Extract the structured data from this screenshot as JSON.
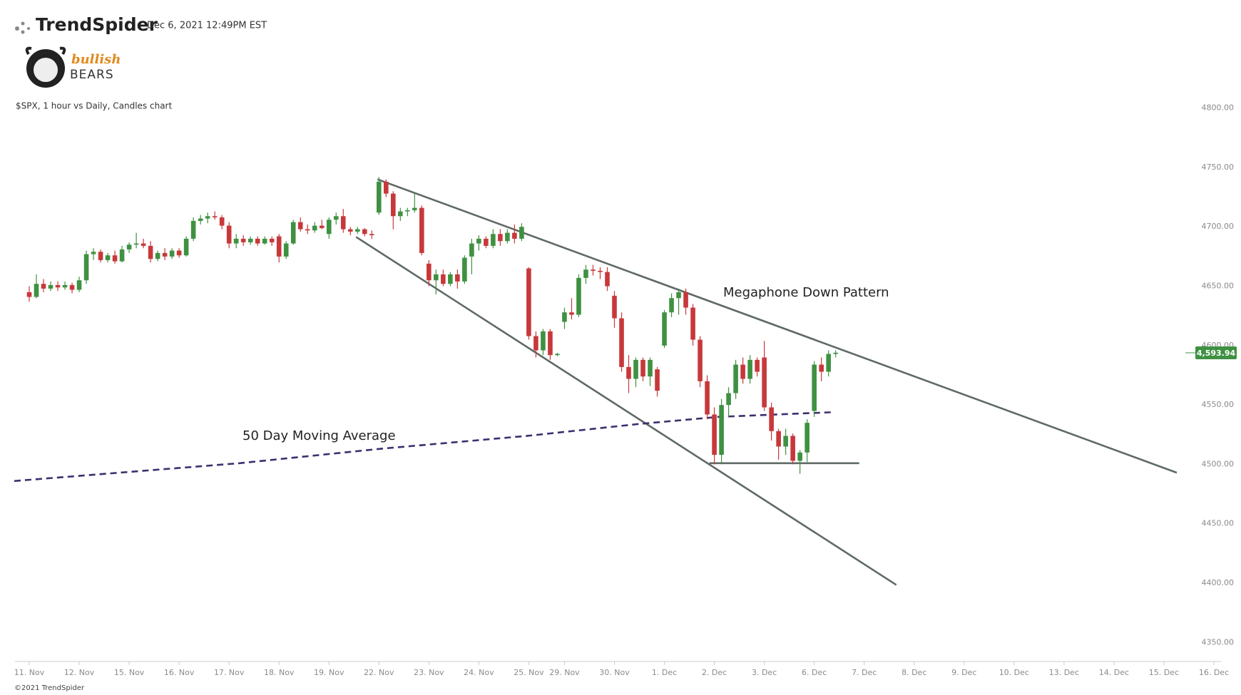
{
  "header": {
    "brand": "TrendSpider",
    "timestamp": "Dec 6, 2021 12:49PM EST",
    "logo_top": "bullish",
    "logo_bottom": "BEARS",
    "footer": "©2021 TrendSpider"
  },
  "chart_data": {
    "type": "candlestick",
    "subtitle": "$SPX, 1 hour vs Daily, Candles chart",
    "up_color": "#3f9142",
    "down_color": "#c7383b",
    "xlim": [
      -2,
      167
    ],
    "ylim": [
      4334,
      4831
    ],
    "yticks": [
      {
        "value": 4350,
        "label": "4350.00"
      },
      {
        "value": 4400,
        "label": "4400.00"
      },
      {
        "value": 4450,
        "label": "4450.00"
      },
      {
        "value": 4500,
        "label": "4500.00"
      },
      {
        "value": 4550,
        "label": "4550.00"
      },
      {
        "value": 4600,
        "label": "4600.00"
      },
      {
        "value": 4650,
        "label": "4650.00"
      },
      {
        "value": 4700,
        "label": "4700.00"
      },
      {
        "value": 4750,
        "label": "4750.00"
      },
      {
        "value": 4800,
        "label": "4800.00"
      }
    ],
    "xticks": [
      {
        "value": 0,
        "label": "11. Nov"
      },
      {
        "value": 7,
        "label": "12. Nov"
      },
      {
        "value": 14,
        "label": "15. Nov"
      },
      {
        "value": 21,
        "label": "16. Nov"
      },
      {
        "value": 28,
        "label": "17. Nov"
      },
      {
        "value": 35,
        "label": "18. Nov"
      },
      {
        "value": 42,
        "label": "19. Nov"
      },
      {
        "value": 49,
        "label": "22. Nov"
      },
      {
        "value": 56,
        "label": "23. Nov"
      },
      {
        "value": 63,
        "label": "24. Nov"
      },
      {
        "value": 70,
        "label": "25. Nov"
      },
      {
        "value": 75,
        "label": "29. Nov"
      },
      {
        "value": 82,
        "label": "30. Nov"
      },
      {
        "value": 89,
        "label": "1. Dec"
      },
      {
        "value": 96,
        "label": "2. Dec"
      },
      {
        "value": 103,
        "label": "3. Dec"
      },
      {
        "value": 110,
        "label": "6. Dec"
      },
      {
        "value": 117,
        "label": "7. Dec"
      },
      {
        "value": 124,
        "label": "8. Dec"
      },
      {
        "value": 131,
        "label": "9. Dec"
      },
      {
        "value": 138,
        "label": "10. Dec"
      },
      {
        "value": 145,
        "label": "13. Dec"
      },
      {
        "value": 152,
        "label": "14. Dec"
      },
      {
        "value": 159,
        "label": "15. Dec"
      },
      {
        "value": 166,
        "label": "16. Dec"
      }
    ],
    "candles": [
      [
        0,
        4645,
        4650,
        4637,
        4641
      ],
      [
        1,
        4641,
        4660,
        4640,
        4652
      ],
      [
        2,
        4652,
        4656,
        4645,
        4648
      ],
      [
        3,
        4648,
        4654,
        4646,
        4651
      ],
      [
        4,
        4651,
        4654,
        4646,
        4649
      ],
      [
        5,
        4649,
        4654,
        4647,
        4651
      ],
      [
        6,
        4651,
        4653,
        4644,
        4647
      ],
      [
        7,
        4647,
        4658,
        4645,
        4655
      ],
      [
        8,
        4655,
        4680,
        4652,
        4677
      ],
      [
        9,
        4677,
        4682,
        4672,
        4679
      ],
      [
        10,
        4679,
        4681,
        4670,
        4672
      ],
      [
        11,
        4672,
        4678,
        4670,
        4676
      ],
      [
        12,
        4676,
        4680,
        4669,
        4671
      ],
      [
        13,
        4671,
        4684,
        4670,
        4681
      ],
      [
        14,
        4681,
        4687,
        4678,
        4685
      ],
      [
        15,
        4685,
        4695,
        4682,
        4686
      ],
      [
        16,
        4686,
        4690,
        4682,
        4684
      ],
      [
        17,
        4684,
        4688,
        4670,
        4673
      ],
      [
        18,
        4673,
        4680,
        4671,
        4678
      ],
      [
        19,
        4678,
        4682,
        4672,
        4675
      ],
      [
        20,
        4675,
        4682,
        4673,
        4680
      ],
      [
        21,
        4680,
        4682,
        4674,
        4676
      ],
      [
        22,
        4676,
        4692,
        4675,
        4690
      ],
      [
        23,
        4690,
        4708,
        4688,
        4705
      ],
      [
        24,
        4705,
        4710,
        4702,
        4707
      ],
      [
        25,
        4707,
        4712,
        4703,
        4709
      ],
      [
        26,
        4709,
        4713,
        4706,
        4708
      ],
      [
        27,
        4708,
        4710,
        4698,
        4701
      ],
      [
        28,
        4701,
        4704,
        4682,
        4686
      ],
      [
        29,
        4686,
        4694,
        4682,
        4690
      ],
      [
        30,
        4690,
        4693,
        4684,
        4687
      ],
      [
        31,
        4687,
        4692,
        4685,
        4690
      ],
      [
        32,
        4690,
        4692,
        4684,
        4686
      ],
      [
        33,
        4686,
        4692,
        4685,
        4690
      ],
      [
        34,
        4690,
        4692,
        4684,
        4687
      ],
      [
        35,
        4692,
        4694,
        4670,
        4675
      ],
      [
        36,
        4675,
        4688,
        4673,
        4686
      ],
      [
        37,
        4686,
        4706,
        4685,
        4704
      ],
      [
        38,
        4704,
        4708,
        4696,
        4698
      ],
      [
        39,
        4698,
        4702,
        4694,
        4697
      ],
      [
        40,
        4697,
        4704,
        4695,
        4701
      ],
      [
        41,
        4701,
        4706,
        4698,
        4699
      ],
      [
        42,
        4694,
        4708,
        4690,
        4706
      ],
      [
        43,
        4706,
        4712,
        4702,
        4709
      ],
      [
        44,
        4709,
        4715,
        4695,
        4698
      ],
      [
        45,
        4698,
        4700,
        4693,
        4696
      ],
      [
        46,
        4696,
        4700,
        4694,
        4698
      ],
      [
        47,
        4698,
        4699,
        4692,
        4694
      ],
      [
        48,
        4694,
        4697,
        4690,
        4693
      ],
      [
        49,
        4712,
        4742,
        4710,
        4738
      ],
      [
        50,
        4738,
        4740,
        4725,
        4728
      ],
      [
        51,
        4728,
        4730,
        4698,
        4709
      ],
      [
        52,
        4709,
        4716,
        4705,
        4713
      ],
      [
        53,
        4713,
        4716,
        4709,
        4714
      ],
      [
        54,
        4714,
        4728,
        4712,
        4716
      ],
      [
        55,
        4716,
        4718,
        4676,
        4678
      ],
      [
        56,
        4669,
        4672,
        4650,
        4655
      ],
      [
        57,
        4655,
        4664,
        4643,
        4660
      ],
      [
        58,
        4660,
        4664,
        4650,
        4652
      ],
      [
        59,
        4652,
        4662,
        4650,
        4660
      ],
      [
        60,
        4660,
        4664,
        4648,
        4654
      ],
      [
        61,
        4654,
        4676,
        4652,
        4674
      ],
      [
        62,
        4675,
        4690,
        4660,
        4686
      ],
      [
        63,
        4686,
        4693,
        4680,
        4690
      ],
      [
        64,
        4690,
        4692,
        4682,
        4684
      ],
      [
        65,
        4684,
        4698,
        4682,
        4694
      ],
      [
        66,
        4694,
        4698,
        4684,
        4688
      ],
      [
        67,
        4688,
        4698,
        4686,
        4695
      ],
      [
        68,
        4695,
        4702,
        4686,
        4690
      ],
      [
        69,
        4690,
        4703,
        4688,
        4700
      ],
      [
        70,
        4665,
        4666,
        4605,
        4608
      ],
      [
        71,
        4608,
        4612,
        4590,
        4596
      ],
      [
        72,
        4596,
        4614,
        4592,
        4612
      ],
      [
        73,
        4612,
        4614,
        4588,
        4592
      ],
      [
        74,
        4592,
        4594,
        4591,
        4593
      ],
      [
        75,
        4620,
        4632,
        4614,
        4628
      ],
      [
        76,
        4628,
        4640,
        4622,
        4626
      ],
      [
        77,
        4626,
        4660,
        4624,
        4657
      ],
      [
        78,
        4657,
        4668,
        4652,
        4664
      ],
      [
        79,
        4664,
        4668,
        4659,
        4663
      ],
      [
        80,
        4663,
        4666,
        4656,
        4662
      ],
      [
        81,
        4662,
        4666,
        4646,
        4650
      ],
      [
        82,
        4642,
        4646,
        4615,
        4623
      ],
      [
        83,
        4623,
        4628,
        4578,
        4582
      ],
      [
        84,
        4582,
        4592,
        4560,
        4572
      ],
      [
        85,
        4572,
        4590,
        4565,
        4588
      ],
      [
        86,
        4588,
        4590,
        4570,
        4574
      ],
      [
        87,
        4574,
        4590,
        4566,
        4588
      ],
      [
        88,
        4580,
        4582,
        4557,
        4562
      ],
      [
        89,
        4600,
        4630,
        4598,
        4628
      ],
      [
        90,
        4628,
        4644,
        4624,
        4640
      ],
      [
        91,
        4640,
        4648,
        4626,
        4645
      ],
      [
        92,
        4645,
        4648,
        4626,
        4632
      ],
      [
        93,
        4632,
        4635,
        4600,
        4605
      ],
      [
        94,
        4605,
        4608,
        4565,
        4570
      ],
      [
        95,
        4570,
        4575,
        4538,
        4542
      ],
      [
        96,
        4542,
        4548,
        4500,
        4508
      ],
      [
        97,
        4508,
        4555,
        4500,
        4550
      ],
      [
        98,
        4550,
        4565,
        4540,
        4560
      ],
      [
        99,
        4560,
        4588,
        4555,
        4584
      ],
      [
        100,
        4584,
        4590,
        4568,
        4572
      ],
      [
        101,
        4572,
        4592,
        4568,
        4588
      ],
      [
        102,
        4588,
        4590,
        4574,
        4578
      ],
      [
        103,
        4590,
        4604,
        4545,
        4548
      ],
      [
        104,
        4548,
        4552,
        4520,
        4528
      ],
      [
        105,
        4528,
        4530,
        4504,
        4515
      ],
      [
        106,
        4515,
        4530,
        4508,
        4524
      ],
      [
        107,
        4524,
        4526,
        4500,
        4503
      ],
      [
        108,
        4503,
        4512,
        4492,
        4510
      ],
      [
        109,
        4510,
        4538,
        4502,
        4535
      ],
      [
        110,
        4545,
        4587,
        4540,
        4584
      ],
      [
        111,
        4584,
        4590,
        4570,
        4578
      ],
      [
        112,
        4578,
        4596,
        4574,
        4593
      ],
      [
        113,
        4593,
        4596,
        4590,
        4594
      ]
    ],
    "trendlines": [
      {
        "x": [
          48.8,
          160.8
        ],
        "values": [
          4740,
          4493
        ]
      },
      {
        "x": [
          45.8,
          121.5
        ],
        "values": [
          4691.5,
          4398.5
        ]
      },
      {
        "x": [
          95.3,
          116.3
        ],
        "values": [
          4501,
          4501
        ]
      }
    ],
    "trendline_color": "#5f6a66",
    "moving_average": {
      "name": "50 Day Moving Average",
      "color": "#3d2f6e",
      "x": [
        -2.1,
        29.5,
        49,
        69.8,
        85.4,
        96.6,
        112.9
      ],
      "values": [
        4486,
        4501,
        4513,
        4524,
        4534,
        4540,
        4544
      ]
    },
    "annotation": "Megaphone Down Pattern",
    "last_price": {
      "value": 4593.94,
      "label": "4,593.94"
    }
  }
}
